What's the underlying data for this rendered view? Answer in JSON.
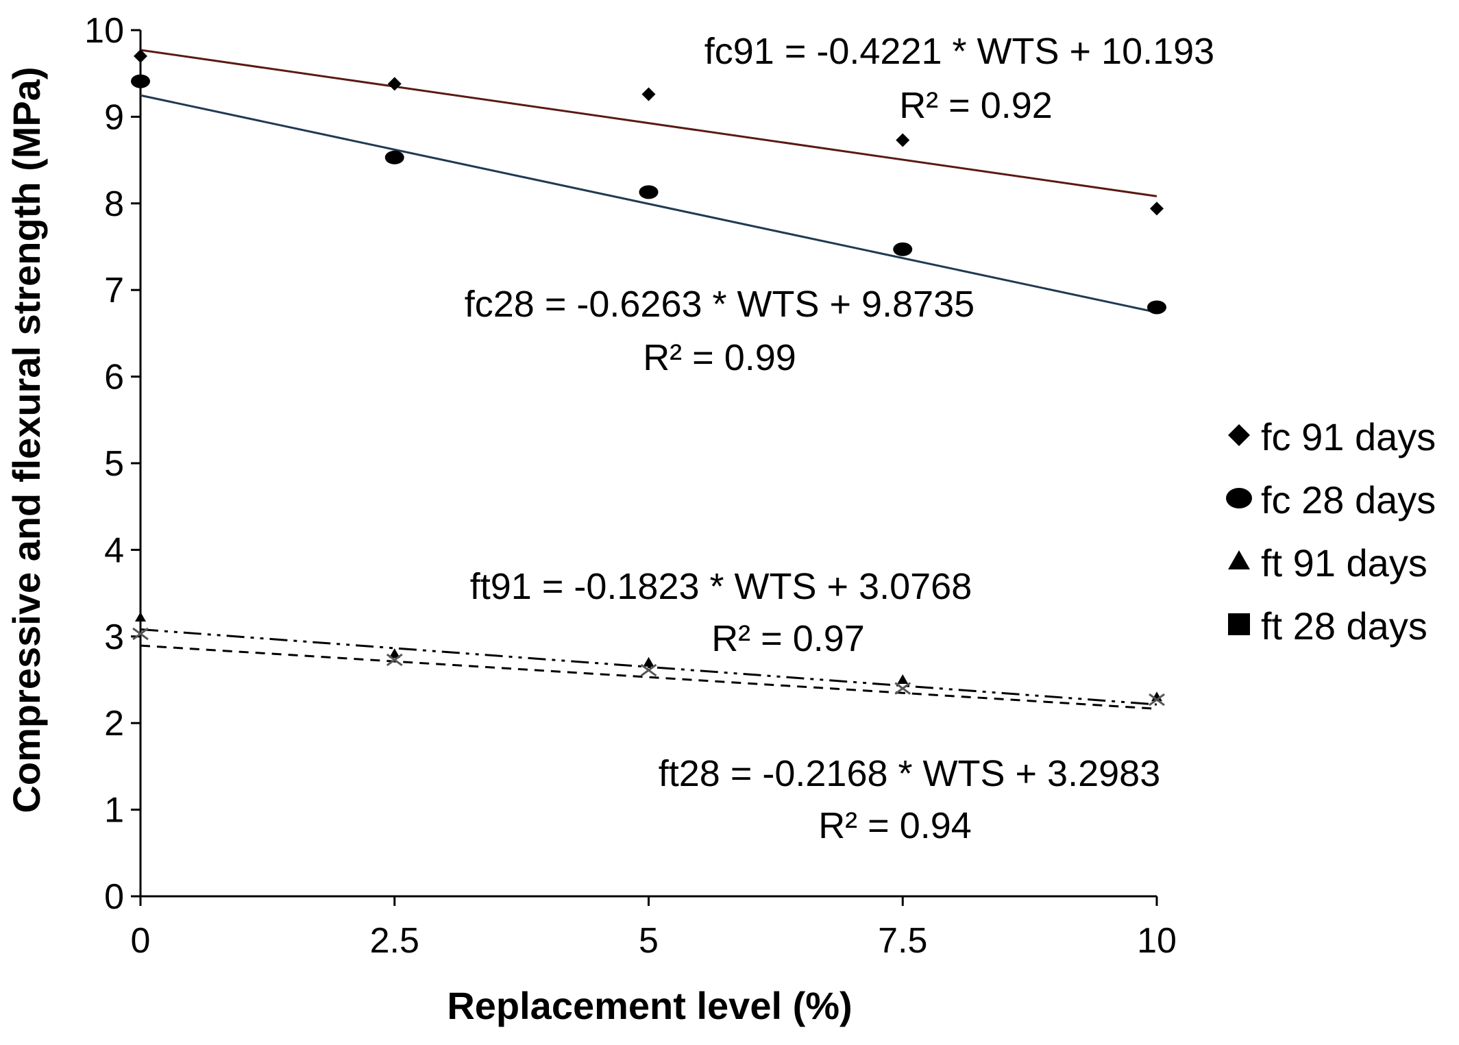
{
  "chart_data": {
    "type": "scatter",
    "title": "",
    "xlabel": "Replacement level (%)",
    "ylabel": "Compressive and flexural strength (MPa)",
    "xlim": [
      0,
      10
    ],
    "ylim": [
      0,
      10
    ],
    "xticks": [
      0,
      2.5,
      5,
      7.5,
      10
    ],
    "xtick_labels": [
      "0",
      "2.5",
      "5",
      "7.5",
      "10"
    ],
    "yticks": [
      0,
      1,
      2,
      3,
      4,
      5,
      6,
      7,
      8,
      9,
      10
    ],
    "ytick_labels": [
      "0",
      "1",
      "2",
      "3",
      "4",
      "5",
      "6",
      "7",
      "8",
      "9",
      "10"
    ],
    "grid": false,
    "legend_position": "right",
    "series": [
      {
        "name": "fc 91 days",
        "marker": "diamond",
        "x": [
          0,
          2.5,
          5,
          7.5,
          10
        ],
        "y": [
          9.7,
          9.38,
          9.26,
          8.73,
          7.94
        ],
        "trendline": {
          "style": "solid",
          "color": "#5a1a12",
          "slope": -0.4221,
          "intercept": 10.193,
          "equation": "fc91 = -0.4221 * WTS + 10.193",
          "r2": "R² = 0.92"
        }
      },
      {
        "name": "fc 28 days",
        "marker": "circle",
        "x": [
          0,
          2.5,
          5,
          7.5,
          10
        ],
        "y": [
          9.41,
          8.53,
          8.13,
          7.47,
          6.8
        ],
        "trendline": {
          "style": "solid",
          "color": "#1f3a52",
          "slope": -0.6263,
          "intercept": 9.8735,
          "equation": "fc28 = -0.6263 * WTS + 9.8735",
          "r2": "R² = 0.99"
        }
      },
      {
        "name": "ft 91 days",
        "marker": "triangle",
        "x": [
          0,
          2.5,
          5,
          7.5,
          10
        ],
        "y": [
          3.22,
          2.8,
          2.7,
          2.5,
          2.3
        ],
        "trendline": {
          "style": "dashed",
          "color": "#000000",
          "slope": -0.1823,
          "intercept": 3.0768,
          "equation": "ft91 = -0.1823 * WTS + 3.0768",
          "r2": "R² = 0.97"
        }
      },
      {
        "name": "ft 28 days",
        "marker": "square",
        "x": [
          0,
          2.5,
          5,
          7.5,
          10
        ],
        "y": [
          3.03,
          2.73,
          2.61,
          2.4,
          2.27
        ],
        "trendline": {
          "style": "dashdot",
          "color": "#000000",
          "slope": -0.2168,
          "intercept": 3.2983,
          "equation": "ft28 = -0.2168 * WTS + 3.2983",
          "r2": "R² = 0.94"
        }
      }
    ]
  }
}
